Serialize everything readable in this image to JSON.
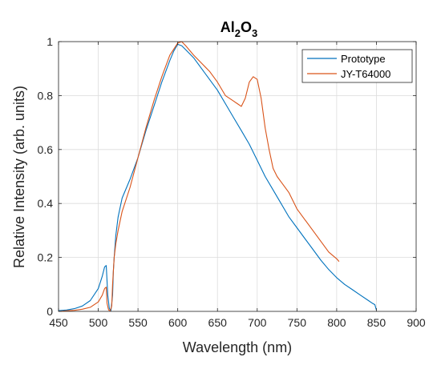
{
  "chart_data": {
    "type": "line",
    "title": {
      "base1": "Al",
      "sub1": "2",
      "base2": "O",
      "sub2": "3"
    },
    "xlabel": "Wavelength (nm)",
    "ylabel": "Relative Intensity (arb. units)",
    "xlim": [
      450,
      900
    ],
    "ylim": [
      0,
      1
    ],
    "xticks": [
      "450",
      "500",
      "550",
      "600",
      "650",
      "700",
      "750",
      "800",
      "850",
      "900"
    ],
    "yticks": [
      "0",
      "0.2",
      "0.4",
      "0.6",
      "0.8",
      "1"
    ],
    "grid": true,
    "legend_position": "top-right",
    "series": [
      {
        "name": "Prototype",
        "color": "#0072BD",
        "x": [
          450,
          460,
          470,
          480,
          490,
          500,
          505,
          508,
          510,
          512,
          514,
          516,
          518,
          519,
          520,
          522,
          525,
          530,
          540,
          550,
          560,
          570,
          580,
          590,
          595,
          600,
          605,
          610,
          620,
          630,
          640,
          650,
          660,
          670,
          680,
          690,
          700,
          710,
          720,
          730,
          740,
          750,
          760,
          770,
          780,
          790,
          800,
          810,
          820,
          830,
          840,
          845,
          848,
          850
        ],
        "y": [
          0.003,
          0.005,
          0.01,
          0.02,
          0.04,
          0.085,
          0.13,
          0.165,
          0.17,
          0.06,
          0.01,
          0.003,
          0.06,
          0.15,
          0.2,
          0.28,
          0.35,
          0.42,
          0.49,
          0.57,
          0.67,
          0.76,
          0.85,
          0.93,
          0.965,
          0.99,
          0.985,
          0.97,
          0.94,
          0.9,
          0.86,
          0.82,
          0.77,
          0.72,
          0.67,
          0.62,
          0.56,
          0.5,
          0.45,
          0.4,
          0.35,
          0.31,
          0.27,
          0.23,
          0.19,
          0.155,
          0.125,
          0.1,
          0.08,
          0.06,
          0.04,
          0.03,
          0.025,
          0.005
        ]
      },
      {
        "name": "JY-T64000",
        "color": "#D95319",
        "x": [
          450,
          460,
          470,
          480,
          490,
          500,
          505,
          508,
          510,
          511,
          513,
          515,
          517,
          518,
          520,
          522,
          525,
          530,
          540,
          550,
          560,
          570,
          580,
          590,
          600,
          605,
          610,
          620,
          630,
          640,
          650,
          660,
          670,
          675,
          680,
          685,
          690,
          695,
          700,
          705,
          710,
          715,
          720,
          725,
          730,
          740,
          750,
          760,
          770,
          780,
          790,
          800,
          803
        ],
        "y": [
          0.0,
          0.002,
          0.004,
          0.008,
          0.015,
          0.035,
          0.06,
          0.085,
          0.09,
          0.03,
          0.005,
          0.002,
          0.02,
          0.1,
          0.2,
          0.25,
          0.3,
          0.37,
          0.46,
          0.57,
          0.68,
          0.78,
          0.87,
          0.95,
          0.995,
          1.0,
          0.985,
          0.95,
          0.92,
          0.89,
          0.85,
          0.8,
          0.78,
          0.77,
          0.76,
          0.79,
          0.85,
          0.87,
          0.86,
          0.79,
          0.68,
          0.6,
          0.53,
          0.5,
          0.48,
          0.44,
          0.38,
          0.34,
          0.3,
          0.26,
          0.22,
          0.195,
          0.185
        ]
      }
    ]
  }
}
